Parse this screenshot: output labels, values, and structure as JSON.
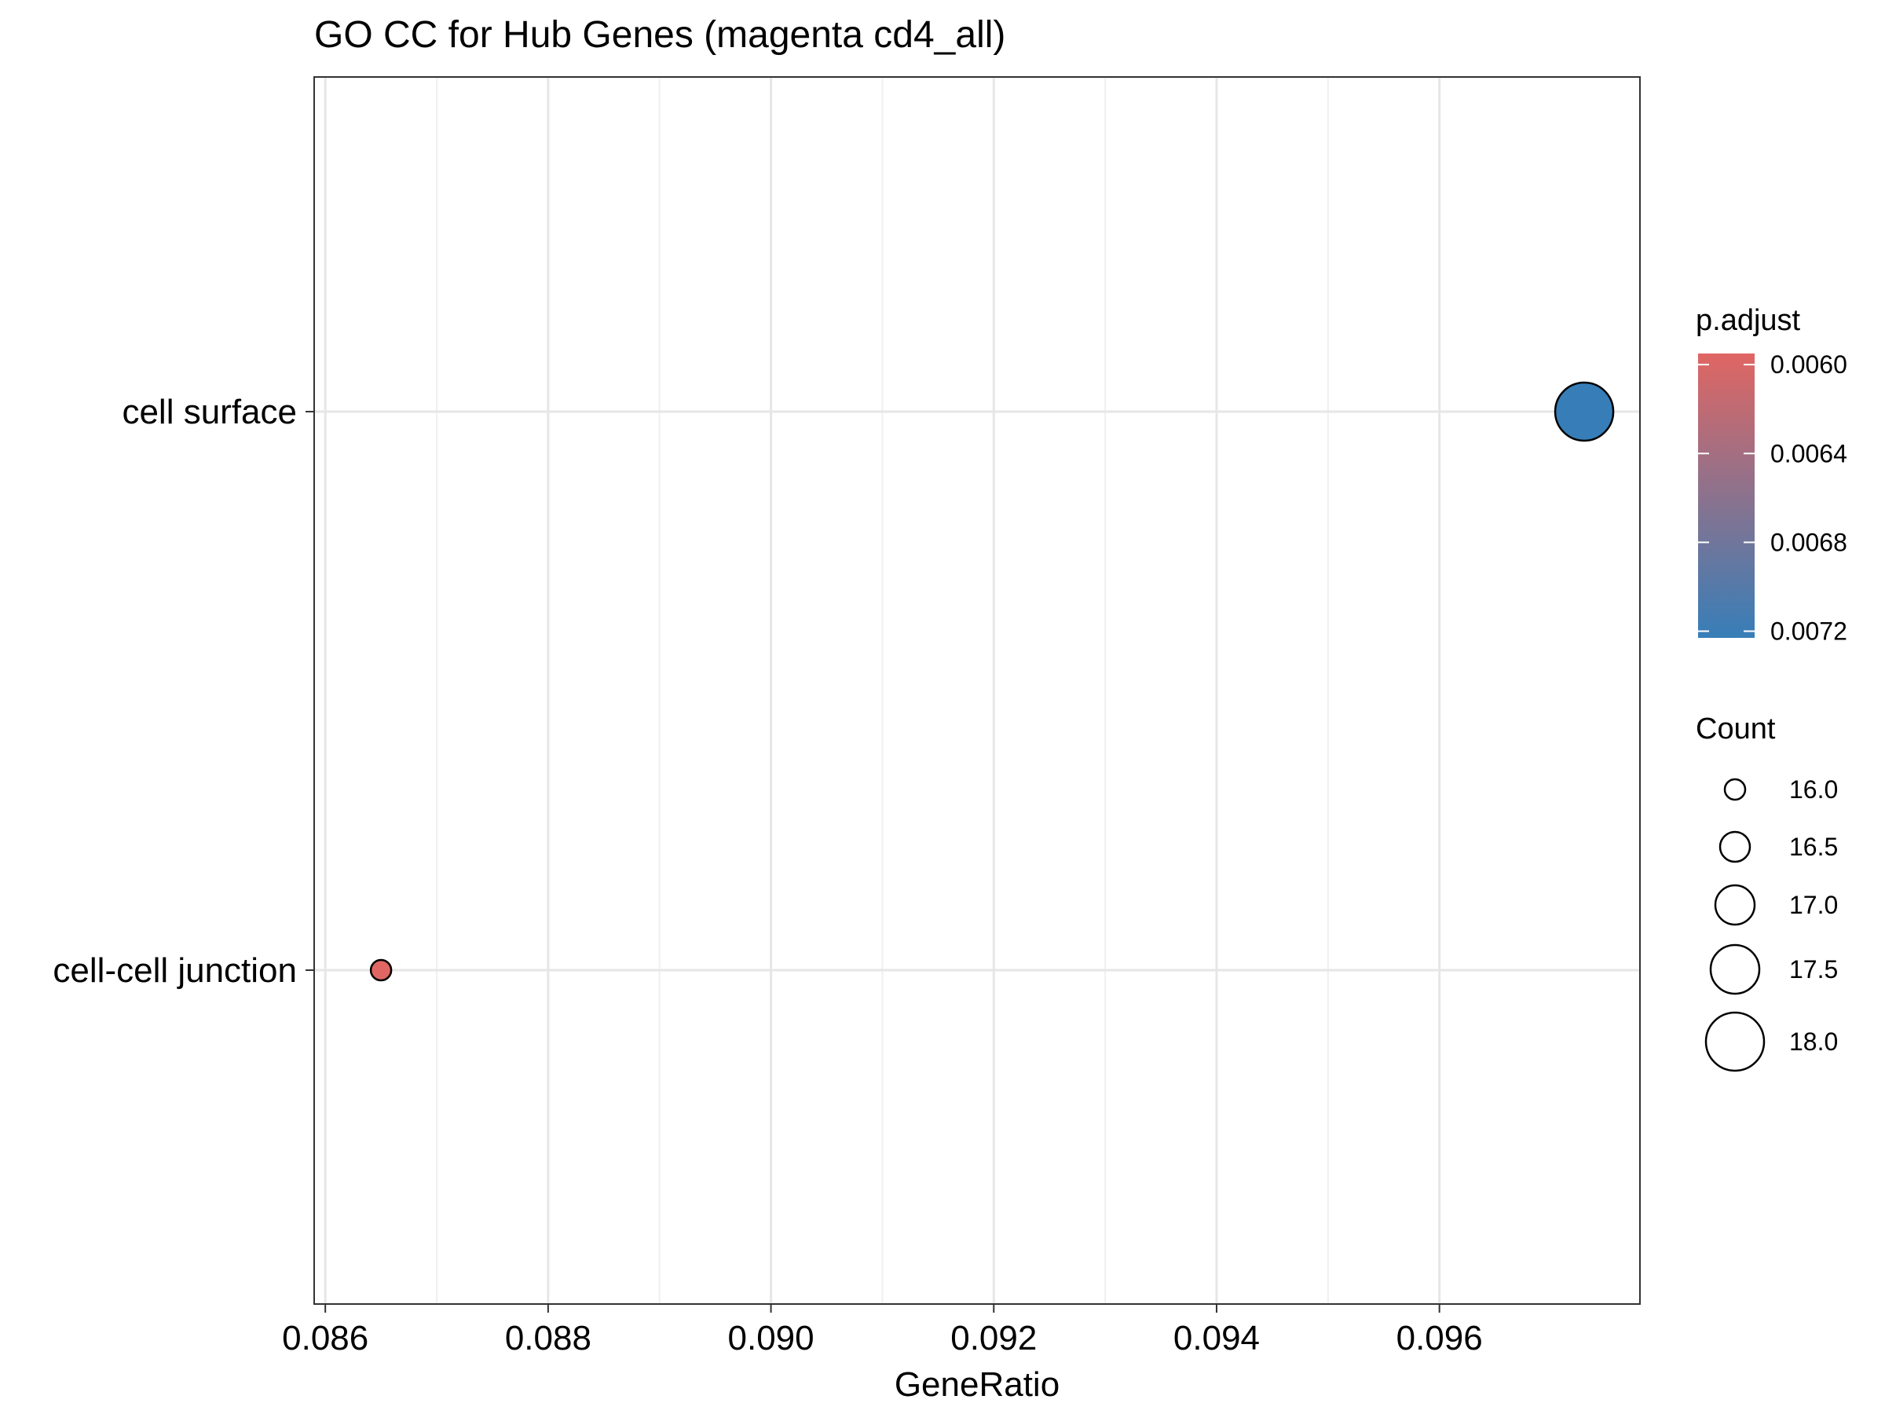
{
  "chart_data": {
    "type": "scatter",
    "title": "GO CC for Hub Genes (magenta cd4_all)",
    "xlabel": "GeneRatio",
    "ylabel": "",
    "xlim": [
      0.0859,
      0.0978
    ],
    "x_ticks": [
      0.086,
      0.088,
      0.09,
      0.092,
      0.094,
      0.096
    ],
    "x_tick_labels": [
      "0.086",
      "0.088",
      "0.090",
      "0.092",
      "0.094",
      "0.096"
    ],
    "categories": [
      "cell-cell junction",
      "cell surface"
    ],
    "grid": true,
    "points": [
      {
        "term": "cell surface",
        "x": 0.0973,
        "count": 18,
        "p_adjust": 0.00723,
        "color": "#377EB8"
      },
      {
        "term": "cell-cell junction",
        "x": 0.0865,
        "count": 16,
        "p_adjust": 0.00595,
        "color": "#E06663"
      }
    ],
    "legend": {
      "placement": "right",
      "color": {
        "title": "p.adjust",
        "range": [
          0.00595,
          0.00723
        ],
        "low_color": "#E06663",
        "high_color": "#377EB8",
        "ticks": [
          0.006,
          0.0064,
          0.0068,
          0.0072
        ],
        "tick_labels": [
          "0.0060",
          "0.0064",
          "0.0068",
          "0.0072"
        ]
      },
      "size": {
        "title": "Count",
        "range": [
          16,
          18
        ],
        "values": [
          16.0,
          16.5,
          17.0,
          17.5,
          18.0
        ],
        "labels": [
          "16.0",
          "16.5",
          "17.0",
          "17.5",
          "18.0"
        ]
      }
    }
  }
}
